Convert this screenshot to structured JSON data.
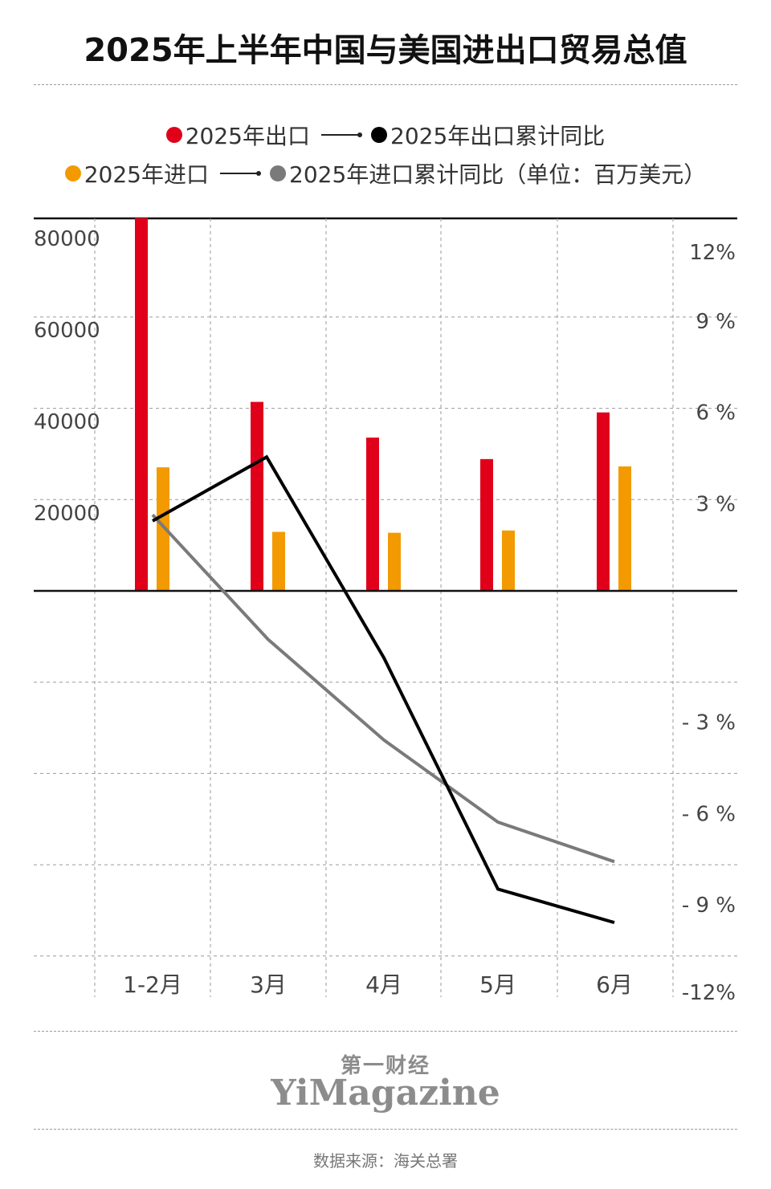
{
  "title": "2025年上半年中国与美国进出口贸易总值",
  "legend": {
    "export": "2025年出口",
    "export_yoy": "2025年出口累计同比",
    "import": "2025年进口",
    "import_yoy": "2025年进口累计同比（单位：百万美元）"
  },
  "colors": {
    "export": "#e0001a",
    "import": "#f39a00",
    "export_yoy": "#000000",
    "import_yoy": "#7a7a7a"
  },
  "chart_data": {
    "type": "bar",
    "categories": [
      "1-2月",
      "3月",
      "4月",
      "5月",
      "6月"
    ],
    "series": [
      {
        "name": "2025年出口",
        "kind": "bar",
        "axis": "left",
        "values": [
          81500,
          41300,
          33500,
          28800,
          39000
        ]
      },
      {
        "name": "2025年进口",
        "kind": "bar",
        "axis": "left",
        "values": [
          27000,
          12900,
          12700,
          13200,
          27200
        ]
      },
      {
        "name": "2025年出口累计同比",
        "kind": "line",
        "axis": "right",
        "values": [
          2.3,
          4.4,
          -2.2,
          -9.8,
          -10.9
        ]
      },
      {
        "name": "2025年进口累计同比",
        "kind": "line",
        "axis": "right",
        "values": [
          2.5,
          -1.6,
          -4.9,
          -7.6,
          -8.9
        ]
      }
    ],
    "left_axis": {
      "ticks": [
        "80000",
        "60000",
        "40000",
        "20000"
      ],
      "tick_values": [
        80000,
        60000,
        40000,
        20000
      ],
      "range": [
        0,
        80000
      ]
    },
    "right_axis": {
      "ticks": [
        "12%",
        "9 %",
        "6 %",
        "3 %",
        "- 3 %",
        "- 6 %",
        "- 9 %",
        "-12%"
      ],
      "tick_values": [
        12,
        9,
        6,
        3,
        -3,
        -6,
        -9,
        -12
      ],
      "range": [
        -12,
        12
      ]
    },
    "grid": true
  },
  "brand": {
    "cn": "第一财经",
    "en": "YiMagazine"
  },
  "source": "数据来源：海关总署"
}
